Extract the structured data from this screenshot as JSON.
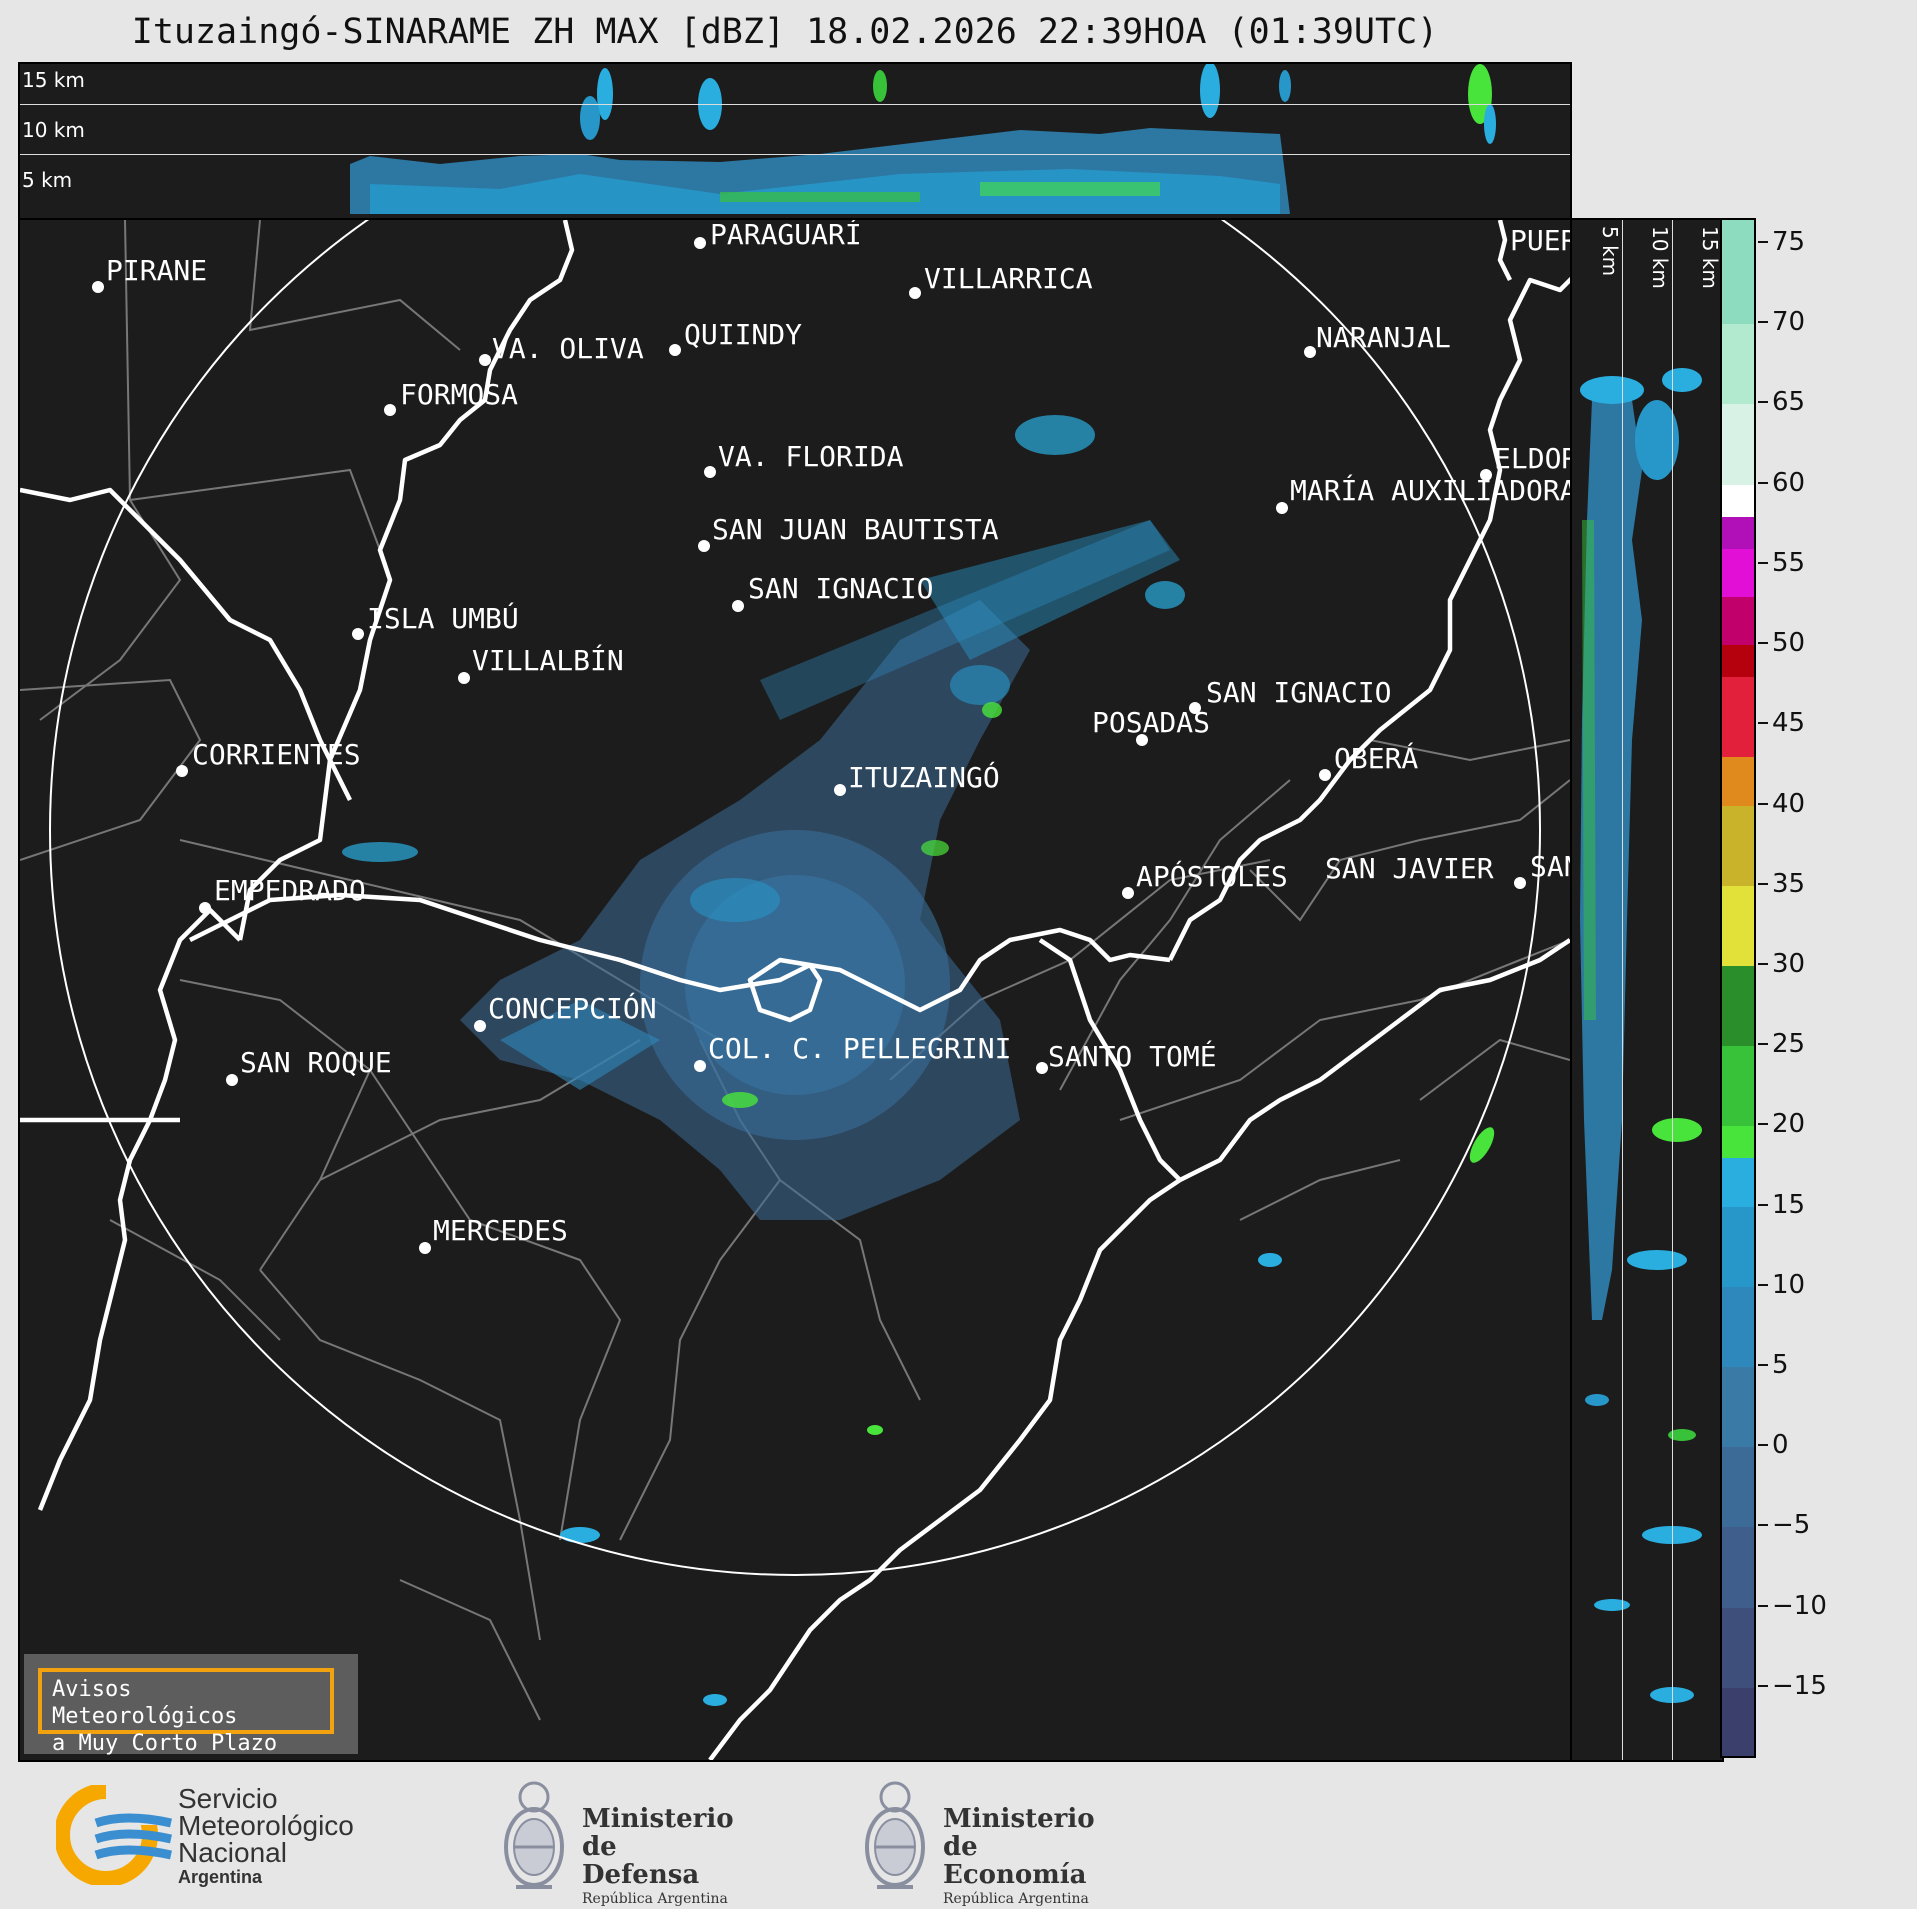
{
  "title": "Ituzaingó-SINARAME ZH MAX [dBZ] 18.02.2026 22:39HOA (01:39UTC)",
  "top_panel": {
    "heights": [
      "15 km",
      "10 km",
      "5 km"
    ]
  },
  "side_panel": {
    "heights": [
      "5 km",
      "10 km",
      "15 km"
    ]
  },
  "cities": [
    "PIRANE",
    "PARAGUARÍ",
    "VILLARRICA",
    "QUIINDY",
    "VA. OLIVA",
    "NARANJAL",
    "FORMOSA",
    "VA. FLORIDA",
    "ELDORADO",
    "MARÍA AUXILIADORA",
    "SAN JUAN BAUTISTA",
    "SAN IGNACIO",
    "ISLA UMBÚ",
    "VILLALBÍN",
    "SAN IGNACIO",
    "POSADAS",
    "CORRIENTES",
    "ITUZAINGÓ",
    "OBERÁ",
    "APÓSTOLES",
    "SAN JAVIER",
    "SAN",
    "EMPEDRADO",
    "CONCEPCIÓN",
    "COL. C. PELLEGRINI",
    "SANTO TOMÉ",
    "SAN ROQUE",
    "MERCEDES",
    "PUERTO"
  ],
  "colorbar": {
    "ticks": [
      "75",
      "70",
      "65",
      "60",
      "55",
      "50",
      "45",
      "40",
      "35",
      "30",
      "25",
      "20",
      "15",
      "10",
      "5",
      "0",
      "−5",
      "−10",
      "−15"
    ],
    "tick_values": [
      75,
      70,
      65,
      60,
      55,
      50,
      45,
      40,
      35,
      30,
      25,
      20,
      15,
      10,
      5,
      0,
      -5,
      -10,
      -15
    ],
    "range": [
      -19.5,
      76.5
    ],
    "bands": [
      {
        "from": -19.5,
        "to": -15,
        "color": "#3b3f6b"
      },
      {
        "from": -15,
        "to": -10,
        "color": "#3f4f7c"
      },
      {
        "from": -10,
        "to": -5,
        "color": "#3f5e8c"
      },
      {
        "from": -5,
        "to": 0,
        "color": "#3d6b98"
      },
      {
        "from": 0,
        "to": 5,
        "color": "#3a7aa6"
      },
      {
        "from": 5,
        "to": 10,
        "color": "#2f88bb"
      },
      {
        "from": 10,
        "to": 15,
        "color": "#2797ca"
      },
      {
        "from": 15,
        "to": 18,
        "color": "#2aaee0"
      },
      {
        "from": 18,
        "to": 20,
        "color": "#48e33b"
      },
      {
        "from": 20,
        "to": 25,
        "color": "#38c23a"
      },
      {
        "from": 25,
        "to": 30,
        "color": "#2a8f2a"
      },
      {
        "from": 30,
        "to": 35,
        "color": "#e2e13a"
      },
      {
        "from": 35,
        "to": 40,
        "color": "#c8b32b"
      },
      {
        "from": 40,
        "to": 43,
        "color": "#e08a1e"
      },
      {
        "from": 43,
        "to": 48,
        "color": "#e3203b"
      },
      {
        "from": 48,
        "to": 50,
        "color": "#b5000e"
      },
      {
        "from": 50,
        "to": 53,
        "color": "#c2006b"
      },
      {
        "from": 53,
        "to": 56,
        "color": "#e20fd6"
      },
      {
        "from": 56,
        "to": 58,
        "color": "#b10fb7"
      },
      {
        "from": 58,
        "to": 60,
        "color": "#ffffff"
      },
      {
        "from": 60,
        "to": 65,
        "color": "#d9f2e6"
      },
      {
        "from": 65,
        "to": 70,
        "color": "#b2ead0"
      },
      {
        "from": 70,
        "to": 76.5,
        "color": "#8edcc0"
      }
    ]
  },
  "avisos": {
    "line1": "Avisos Meteorológicos",
    "line2": "a Muy Corto Plazo"
  },
  "logos": {
    "smn": [
      "Servicio",
      "Meteorológico",
      "Nacional",
      "Argentina"
    ],
    "defensa": [
      "Ministerio",
      "de Defensa",
      "República Argentina"
    ],
    "economia": [
      "Ministerio",
      "de Economía",
      "República Argentina"
    ]
  }
}
